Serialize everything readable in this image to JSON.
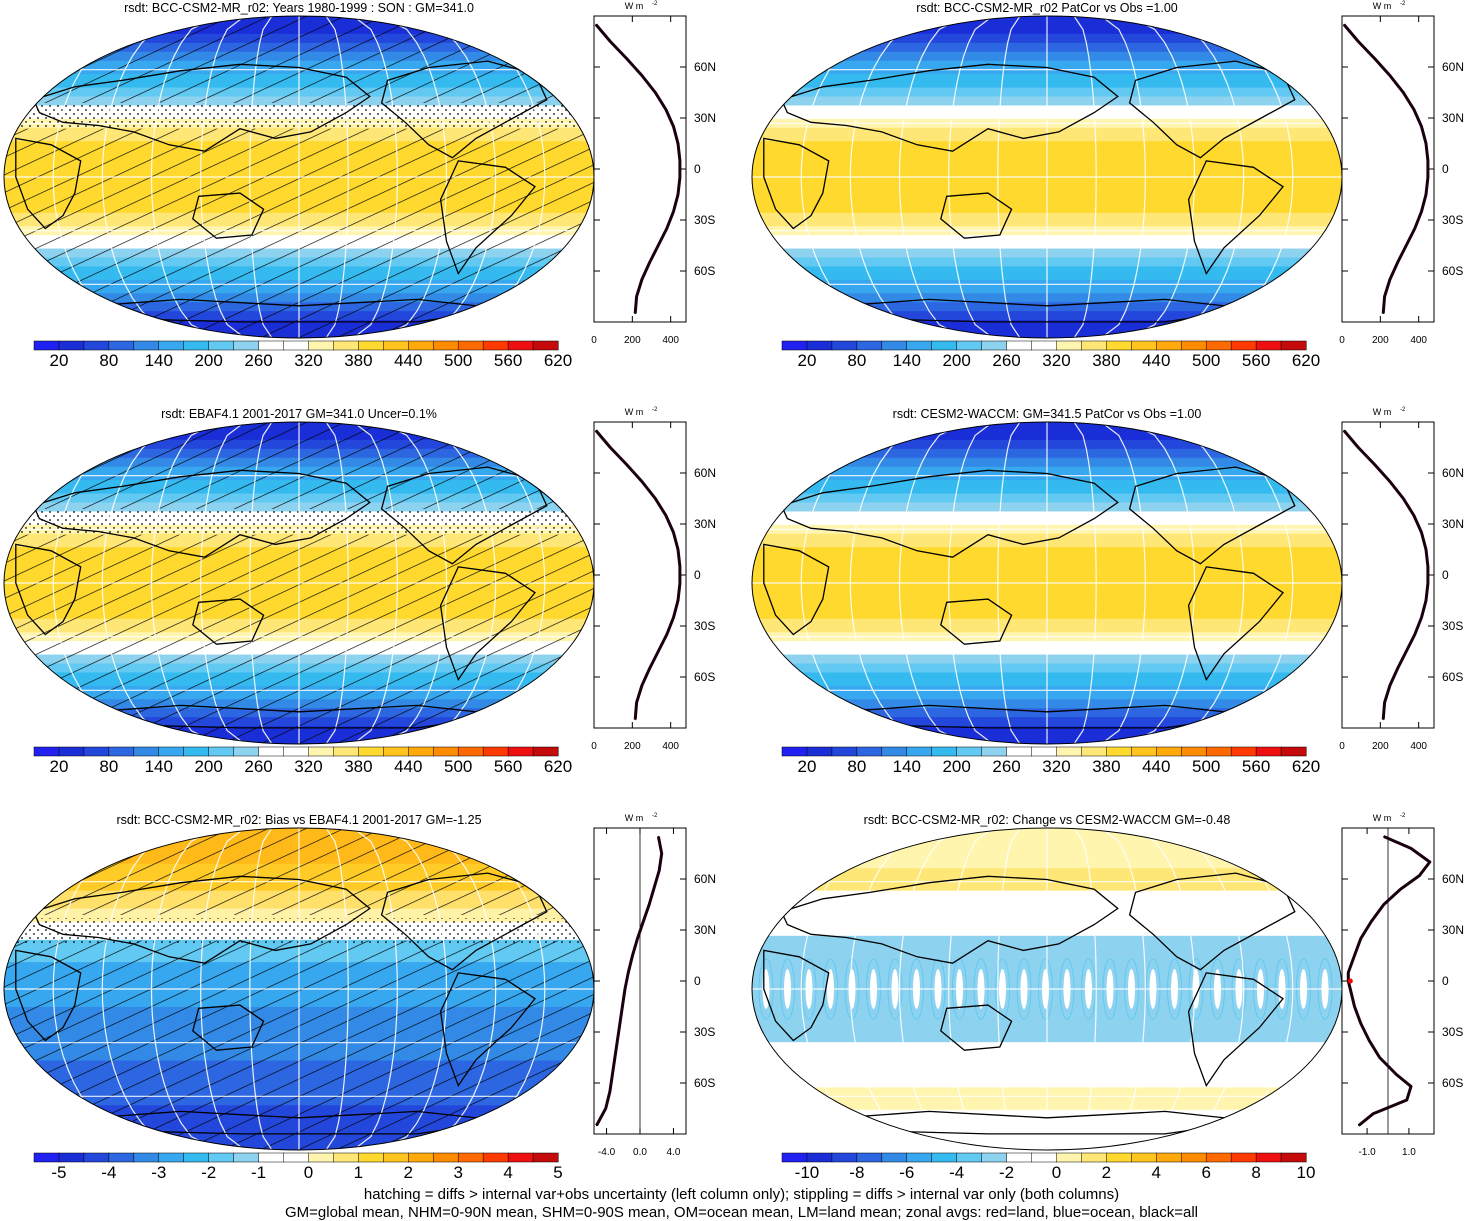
{
  "variable": "rsdt",
  "colors": {
    "abs_scale": [
      "#2020f0",
      "#1a2ed8",
      "#2347db",
      "#2c66e0",
      "#328ae6",
      "#37a8ef",
      "#35baf0",
      "#62c9f2",
      "#8dd2ef",
      "#ffffff",
      "#ffffff",
      "#fff5ae",
      "#ffe777",
      "#ffd92e",
      "#ffc41e",
      "#ffa90c",
      "#ff8b00",
      "#ff6a00",
      "#ff3a00",
      "#ee1010",
      "#c40a0a"
    ],
    "bias_scale": [
      "#2020f0",
      "#1a2ed8",
      "#2347db",
      "#2c66e0",
      "#328ae6",
      "#37a8ef",
      "#35baf0",
      "#62c9f2",
      "#8dd2ef",
      "#ffffff",
      "#ffffff",
      "#fff5ae",
      "#ffe777",
      "#ffd92e",
      "#ffc41e",
      "#ffa90c",
      "#ff8b00",
      "#ff6a00",
      "#ff3a00",
      "#ee1010",
      "#c40a0a"
    ],
    "profile_line": "#1a0010",
    "land_marker": "#ff0000"
  },
  "chart_data": [
    {
      "id": "p1",
      "type": "heatmap",
      "projection": "robinson",
      "title": "rsdt: BCC-CSM2-MR_r02: Years 1980-1999 : SON : GM=341.0",
      "field": "abs",
      "hatching": true,
      "stipple": true,
      "colorbar_labels": [
        "20",
        "80",
        "140",
        "200",
        "260",
        "320",
        "380",
        "440",
        "500",
        "560",
        "620"
      ],
      "profile": {
        "xlabel": "W m",
        "xticks": [
          "0",
          "200",
          "400"
        ],
        "xrange": [
          0,
          480
        ],
        "yticks": [
          "60N",
          "30N",
          "0",
          "30S",
          "60S"
        ],
        "lat": [
          85,
          75,
          65,
          55,
          45,
          35,
          25,
          15,
          5,
          -5,
          -15,
          -25,
          -35,
          -45,
          -55,
          -65,
          -75,
          -85
        ],
        "values": [
          10,
          85,
          170,
          250,
          320,
          375,
          415,
          438,
          448,
          448,
          438,
          415,
          380,
          335,
          290,
          250,
          222,
          215
        ]
      }
    },
    {
      "id": "p2",
      "type": "heatmap",
      "projection": "robinson",
      "title": "rsdt: BCC-CSM2-MR_r02 PatCor vs Obs =1.00",
      "field": "abs",
      "hatching": false,
      "stipple": false,
      "colorbar_labels": [
        "20",
        "80",
        "140",
        "200",
        "260",
        "320",
        "380",
        "440",
        "500",
        "560",
        "620"
      ],
      "profile": {
        "xlabel": "W m",
        "xticks": [
          "0",
          "200",
          "400"
        ],
        "xrange": [
          0,
          480
        ],
        "yticks": [
          "60N",
          "30N",
          "0",
          "30S",
          "60S"
        ],
        "lat": [
          85,
          75,
          65,
          55,
          45,
          35,
          25,
          15,
          5,
          -5,
          -15,
          -25,
          -35,
          -45,
          -55,
          -65,
          -75,
          -85
        ],
        "values": [
          10,
          85,
          170,
          250,
          320,
          375,
          415,
          438,
          448,
          448,
          438,
          415,
          380,
          335,
          290,
          250,
          222,
          215
        ]
      }
    },
    {
      "id": "p3",
      "type": "heatmap",
      "projection": "robinson",
      "title": "rsdt: EBAF4.1 2001-2017 GM=341.0 Uncer=0.1%",
      "field": "abs",
      "hatching": true,
      "stipple": true,
      "colorbar_labels": [
        "20",
        "80",
        "140",
        "200",
        "260",
        "320",
        "380",
        "440",
        "500",
        "560",
        "620"
      ],
      "profile": {
        "xlabel": "W m",
        "xticks": [
          "0",
          "200",
          "400"
        ],
        "xrange": [
          0,
          480
        ],
        "yticks": [
          "60N",
          "30N",
          "0",
          "30S",
          "60S"
        ],
        "lat": [
          85,
          75,
          65,
          55,
          45,
          35,
          25,
          15,
          5,
          -5,
          -15,
          -25,
          -35,
          -45,
          -55,
          -65,
          -75,
          -85
        ],
        "values": [
          10,
          85,
          170,
          250,
          320,
          375,
          415,
          438,
          448,
          448,
          438,
          415,
          380,
          335,
          290,
          250,
          222,
          215
        ]
      }
    },
    {
      "id": "p4",
      "type": "heatmap",
      "projection": "robinson",
      "title": "rsdt: CESM2-WACCM: GM=341.5 PatCor vs Obs =1.00",
      "field": "abs",
      "hatching": false,
      "stipple": false,
      "colorbar_labels": [
        "20",
        "80",
        "140",
        "200",
        "260",
        "320",
        "380",
        "440",
        "500",
        "560",
        "620"
      ],
      "profile": {
        "xlabel": "W m",
        "xticks": [
          "0",
          "200",
          "400"
        ],
        "xrange": [
          0,
          480
        ],
        "yticks": [
          "60N",
          "30N",
          "0",
          "30S",
          "60S"
        ],
        "lat": [
          85,
          75,
          65,
          55,
          45,
          35,
          25,
          15,
          5,
          -5,
          -15,
          -25,
          -35,
          -45,
          -55,
          -65,
          -75,
          -85
        ],
        "values": [
          10,
          85,
          170,
          250,
          320,
          375,
          415,
          438,
          448,
          448,
          438,
          415,
          380,
          335,
          290,
          250,
          222,
          215
        ]
      }
    },
    {
      "id": "p5",
      "type": "heatmap",
      "projection": "robinson",
      "title": "rsdt: BCC-CSM2-MR_r02: Bias vs EBAF4.1 2001-2017  GM=-1.25",
      "field": "bias",
      "hatching": true,
      "stipple": true,
      "colorbar_labels": [
        "-5",
        "-4",
        "-3",
        "-2",
        "-1",
        "0",
        "1",
        "2",
        "3",
        "4",
        "5"
      ],
      "profile": {
        "xlabel": "W m",
        "xticks": [
          "-4.0",
          "0.0",
          "4.0"
        ],
        "xrange": [
          -5.5,
          5.5
        ],
        "yticks": [
          "60N",
          "30N",
          "0",
          "30S",
          "60S"
        ],
        "lat": [
          85,
          75,
          65,
          55,
          45,
          35,
          25,
          15,
          5,
          -5,
          -15,
          -25,
          -35,
          -45,
          -55,
          -65,
          -75,
          -85
        ],
        "values": [
          2.2,
          2.6,
          2.3,
          1.7,
          1.1,
          0.4,
          -0.3,
          -0.9,
          -1.4,
          -1.8,
          -2.1,
          -2.4,
          -2.7,
          -3.0,
          -3.3,
          -3.6,
          -4.1,
          -5.2
        ]
      }
    },
    {
      "id": "p6",
      "type": "heatmap",
      "projection": "robinson",
      "title": "rsdt: BCC-CSM2-MR_r02: Change vs CESM2-WACCM GM=-0.48",
      "field": "change",
      "hatching": false,
      "stipple": false,
      "colorbar_labels": [
        "-10",
        "-8",
        "-6",
        "-4",
        "-2",
        "0",
        "2",
        "4",
        "6",
        "8",
        "10"
      ],
      "profile": {
        "xlabel": "W m",
        "xticks": [
          "-1.0",
          "1.0"
        ],
        "xrange": [
          -2.2,
          2.2
        ],
        "yticks": [
          "60N",
          "30N",
          "0",
          "30S",
          "60S"
        ],
        "lat": [
          85,
          78,
          70,
          62,
          54,
          45,
          35,
          25,
          15,
          5,
          0,
          -5,
          -15,
          -25,
          -35,
          -45,
          -55,
          -62,
          -70,
          -78,
          -85
        ],
        "values": [
          -0.2,
          1.1,
          2.0,
          1.5,
          0.6,
          -0.2,
          -0.8,
          -1.3,
          -1.6,
          -1.9,
          -1.9,
          -1.8,
          -1.6,
          -1.3,
          -0.9,
          -0.4,
          0.4,
          1.1,
          0.9,
          -0.7,
          -1.4
        ]
      }
    }
  ],
  "footer": {
    "line1": "hatching = diffs > internal var+obs uncertainty (left column only); stippling = diffs > internal var only (both columns)",
    "line2": "GM=global mean, NHM=0-90N mean, SHM=0-90S mean, OM=ocean mean, LM=land mean; zonal avgs: red=land, blue=ocean, black=all"
  }
}
